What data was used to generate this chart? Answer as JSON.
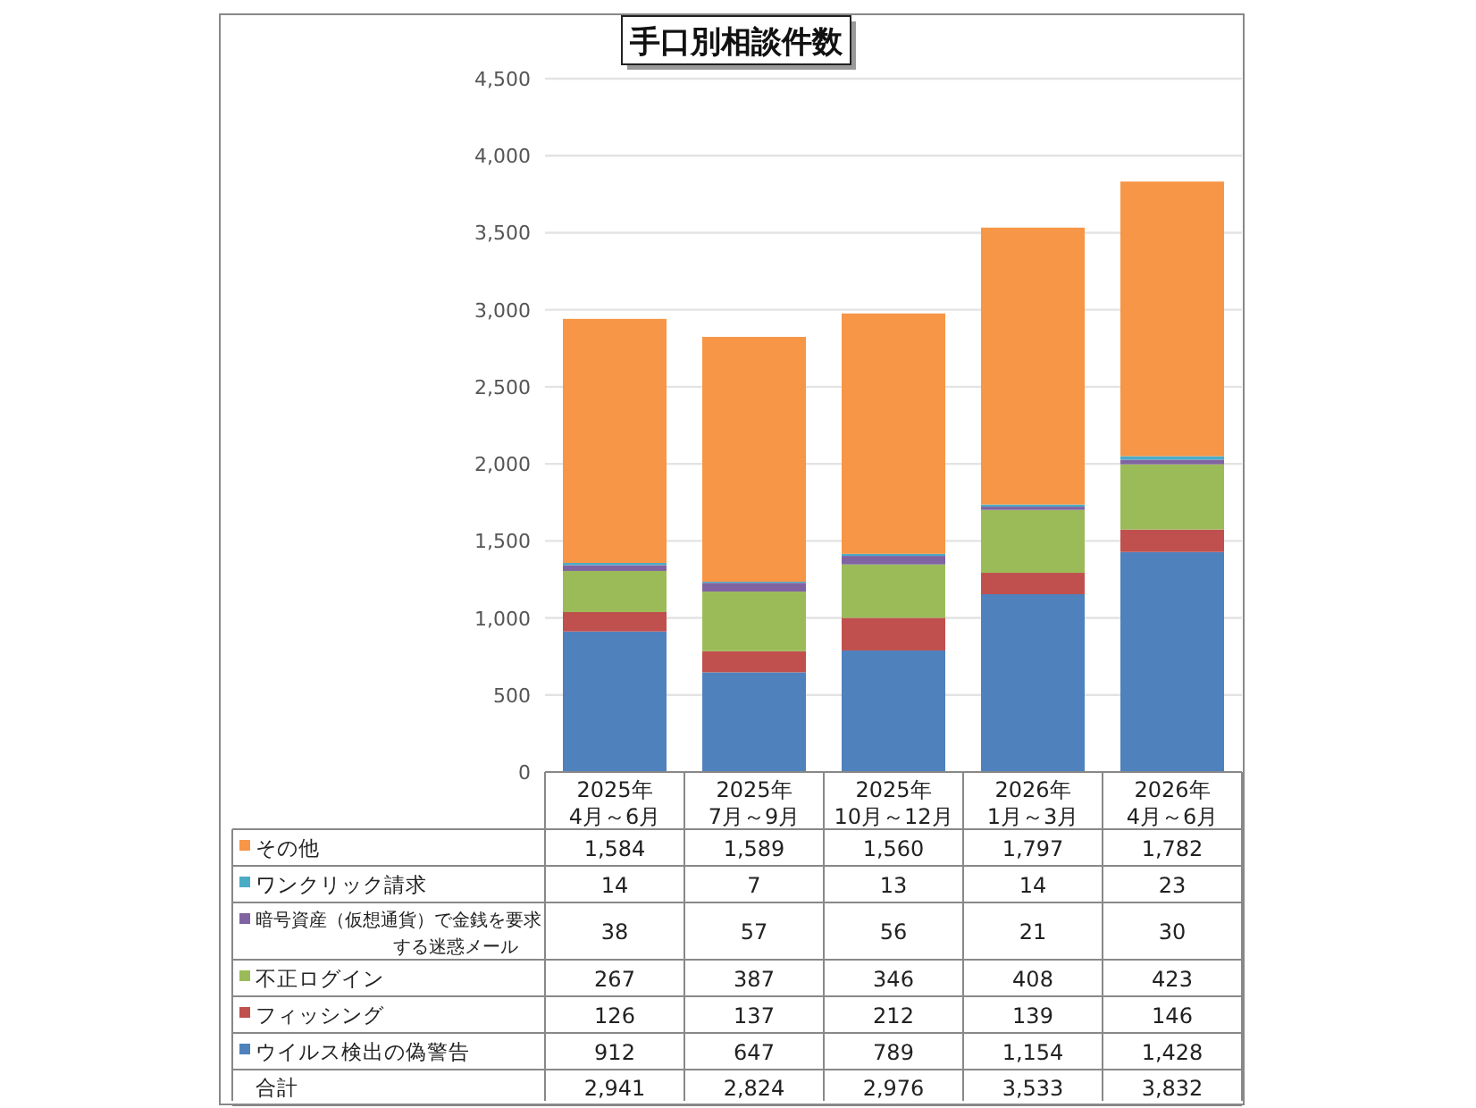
{
  "chart_data": {
    "type": "bar",
    "title": "手口別相談件数",
    "stacked": true,
    "categories": [
      "2025年\n4月～6月",
      "2025年\n7月～9月",
      "2025年\n10月～12月",
      "2026年\n1月～3月",
      "2026年\n4月～6月"
    ],
    "series": [
      {
        "name": "ウイルス検出の偽警告",
        "color": "#4f81bd",
        "values": [
          912,
          647,
          789,
          1154,
          1428
        ],
        "value_labels": [
          "912",
          "647",
          "789",
          "1,154",
          "1,428"
        ]
      },
      {
        "name": "フィッシング",
        "color": "#c0504d",
        "values": [
          126,
          137,
          212,
          139,
          146
        ],
        "value_labels": [
          "126",
          "137",
          "212",
          "139",
          "146"
        ]
      },
      {
        "name": "不正ログイン",
        "color": "#9bbb59",
        "values": [
          267,
          387,
          346,
          408,
          423
        ],
        "value_labels": [
          "267",
          "387",
          "346",
          "408",
          "423"
        ]
      },
      {
        "name": "暗号資産（仮想通貨）で金銭を要求する迷惑メール",
        "color": "#8064a2",
        "values": [
          38,
          57,
          56,
          21,
          30
        ],
        "value_labels": [
          "38",
          "57",
          "56",
          "21",
          "30"
        ]
      },
      {
        "name": "ワンクリック請求",
        "color": "#4bacc6",
        "values": [
          14,
          7,
          13,
          14,
          23
        ],
        "value_labels": [
          "14",
          "7",
          "13",
          "14",
          "23"
        ]
      },
      {
        "name": "その他",
        "color": "#f79646",
        "values": [
          1584,
          1589,
          1560,
          1797,
          1782
        ],
        "value_labels": [
          "1,584",
          "1,589",
          "1,560",
          "1,797",
          "1,782"
        ]
      }
    ],
    "annotations": [
      "合計",
      "2,941",
      "2,824",
      "2,976",
      "3,533",
      "3,832"
    ],
    "ylim": [
      0,
      4500
    ],
    "yticks": [
      {
        "value": 0,
        "label": "0"
      },
      {
        "value": 500,
        "label": "500"
      },
      {
        "value": 1000,
        "label": "1,000"
      },
      {
        "value": 1500,
        "label": "1,500"
      },
      {
        "value": 2000,
        "label": "2,000"
      },
      {
        "value": 2500,
        "label": "2,500"
      },
      {
        "value": 3000,
        "label": "3,000"
      },
      {
        "value": 3500,
        "label": "3,500"
      },
      {
        "value": 4000,
        "label": "4,000"
      },
      {
        "value": 4500,
        "label": "4,500"
      }
    ],
    "grid": "y",
    "legend": "bottom"
  }
}
